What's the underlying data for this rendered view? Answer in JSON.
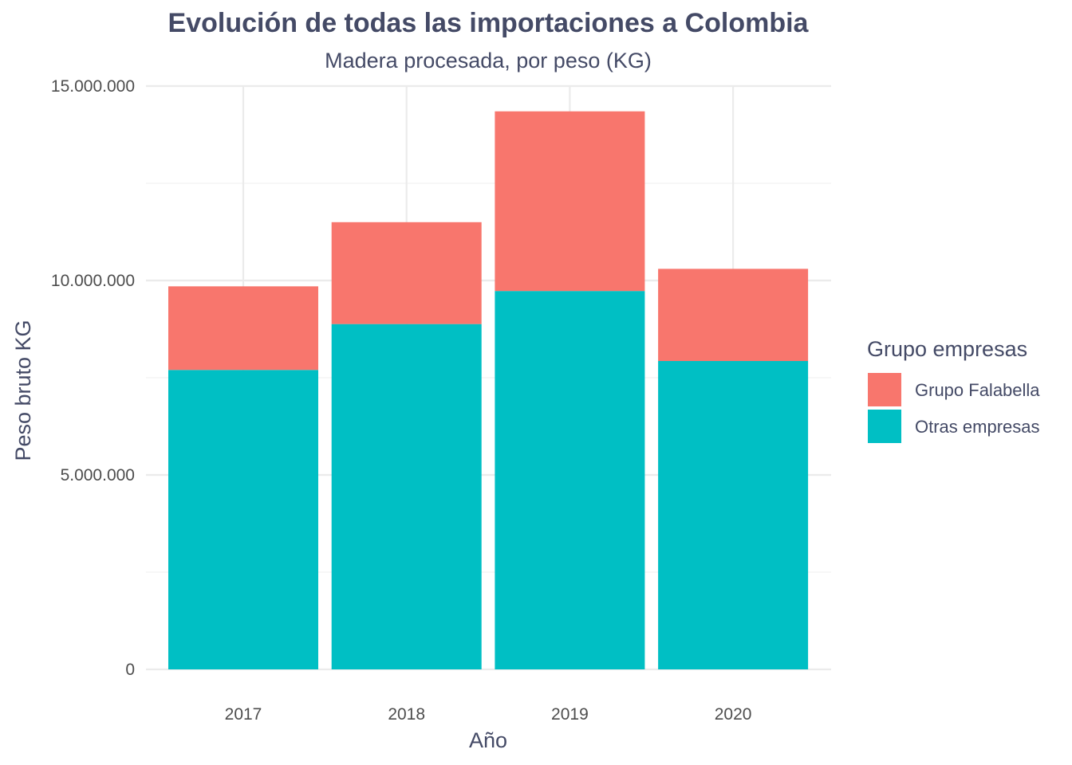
{
  "chart_data": {
    "type": "bar",
    "stacked": true,
    "title": "Evolución de todas las importaciones a Colombia",
    "subtitle": "Madera procesada, por peso (KG)",
    "xlabel": "Año",
    "ylabel": "Peso bruto KG",
    "categories": [
      "2017",
      "2018",
      "2019",
      "2020"
    ],
    "series": [
      {
        "name": "Otras empresas",
        "color": "#00BFC4",
        "values": [
          7700000,
          8880000,
          9730000,
          7930000
        ]
      },
      {
        "name": "Grupo Falabella",
        "color": "#F8766D",
        "values": [
          2150000,
          2620000,
          4620000,
          2370000
        ]
      }
    ],
    "ylim": [
      0,
      15000000
    ],
    "y_ticks": [
      0,
      5000000,
      10000000,
      15000000
    ],
    "y_tick_labels": [
      "0",
      "5.000.000",
      "10.000.000",
      "15.000.000"
    ],
    "grid": true,
    "legend": {
      "title": "Grupo empresas",
      "position": "right",
      "items": [
        {
          "label": "Grupo Falabella",
          "color": "#F8766D"
        },
        {
          "label": "Otras empresas",
          "color": "#00BFC4"
        }
      ]
    }
  }
}
